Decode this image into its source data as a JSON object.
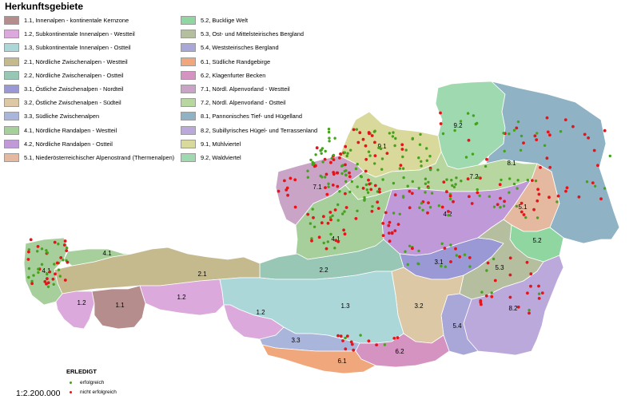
{
  "legend": {
    "title": "Herkunftsgebiete",
    "items": [
      {
        "label": "1.1, Innenalpen - kontinentale Kernzone",
        "color": "#b48d8c"
      },
      {
        "label": "1.2, Subkontinentale Innenalpen - Westteil",
        "color": "#dba9db"
      },
      {
        "label": "1.3, Subkontinentale Innenalpen - Ostteil",
        "color": "#abd7d9"
      },
      {
        "label": "2.1, Nördliche Zwischenalpen - Westteil",
        "color": "#c5b98e"
      },
      {
        "label": "2.2, Nördliche Zwischenalpen - Ostteil",
        "color": "#98c7b6"
      },
      {
        "label": "3.1, Östliche Zwischenalpen - Nordteil",
        "color": "#9a99d6"
      },
      {
        "label": "3.2, Östliche Zwischenalpen - Südteil",
        "color": "#dcc8a5"
      },
      {
        "label": "3.3, Südliche Zwischenalpen",
        "color": "#a9b5db"
      },
      {
        "label": "4.1, Nördliche Randalpen - Westteil",
        "color": "#a6cf9b"
      },
      {
        "label": "4.2, Nördliche Randalpen - Ostteil",
        "color": "#c09ad8"
      },
      {
        "label": "5.1, Niederösterreichischer Alpenostrand (Thermenalpen)",
        "color": "#e4b9a0"
      },
      {
        "label": "5.2, Bucklige Welt",
        "color": "#8fd6a0"
      },
      {
        "label": "5.3, Ost- und Mittelsteirisches Bergland",
        "color": "#b5bf9f"
      },
      {
        "label": "5.4, Weststeirisches Bergland",
        "color": "#a9a7d8"
      },
      {
        "label": "6.1, Südliche Randgebirge",
        "color": "#f0a77c"
      },
      {
        "label": "6.2, Klagenfurter Becken",
        "color": "#d593c2"
      },
      {
        "label": "7.1, Nördl. Alpenvorland - Westteil",
        "color": "#c9a4c6"
      },
      {
        "label": "7.2, Nördl. Alpenvorland - Ostteil",
        "color": "#b8d7a0"
      },
      {
        "label": "8.1, Pannonisches Tief- und Hügelland",
        "color": "#8fb2c4"
      },
      {
        "label": "8.2, Subillyrisches Hügel- und Terrassenland",
        "color": "#bba9dc"
      },
      {
        "label": "9.1, Mühlviertel",
        "color": "#d9d99b"
      },
      {
        "label": "9.2, Waldviertel",
        "color": "#9fd9b0"
      }
    ]
  },
  "map_labels": [
    "1.1",
    "1.2",
    "1.2",
    "1.2",
    "1.3",
    "2.1",
    "2.2",
    "3.1",
    "3.2",
    "3.3",
    "4.1",
    "4.1",
    "4.1",
    "4.2",
    "5.1",
    "5.2",
    "5.3",
    "5.4",
    "6.1",
    "6.2",
    "7.1",
    "7.2",
    "8.1",
    "8.2",
    "9.1",
    "9.2"
  ],
  "status": {
    "title": "ERLEDIGT",
    "success_label": "erfolgreich",
    "success_color": "#44a21c",
    "fail_label": "nicht erfolgreich",
    "fail_color": "#e5141b"
  },
  "scale": "1:2.200.000"
}
